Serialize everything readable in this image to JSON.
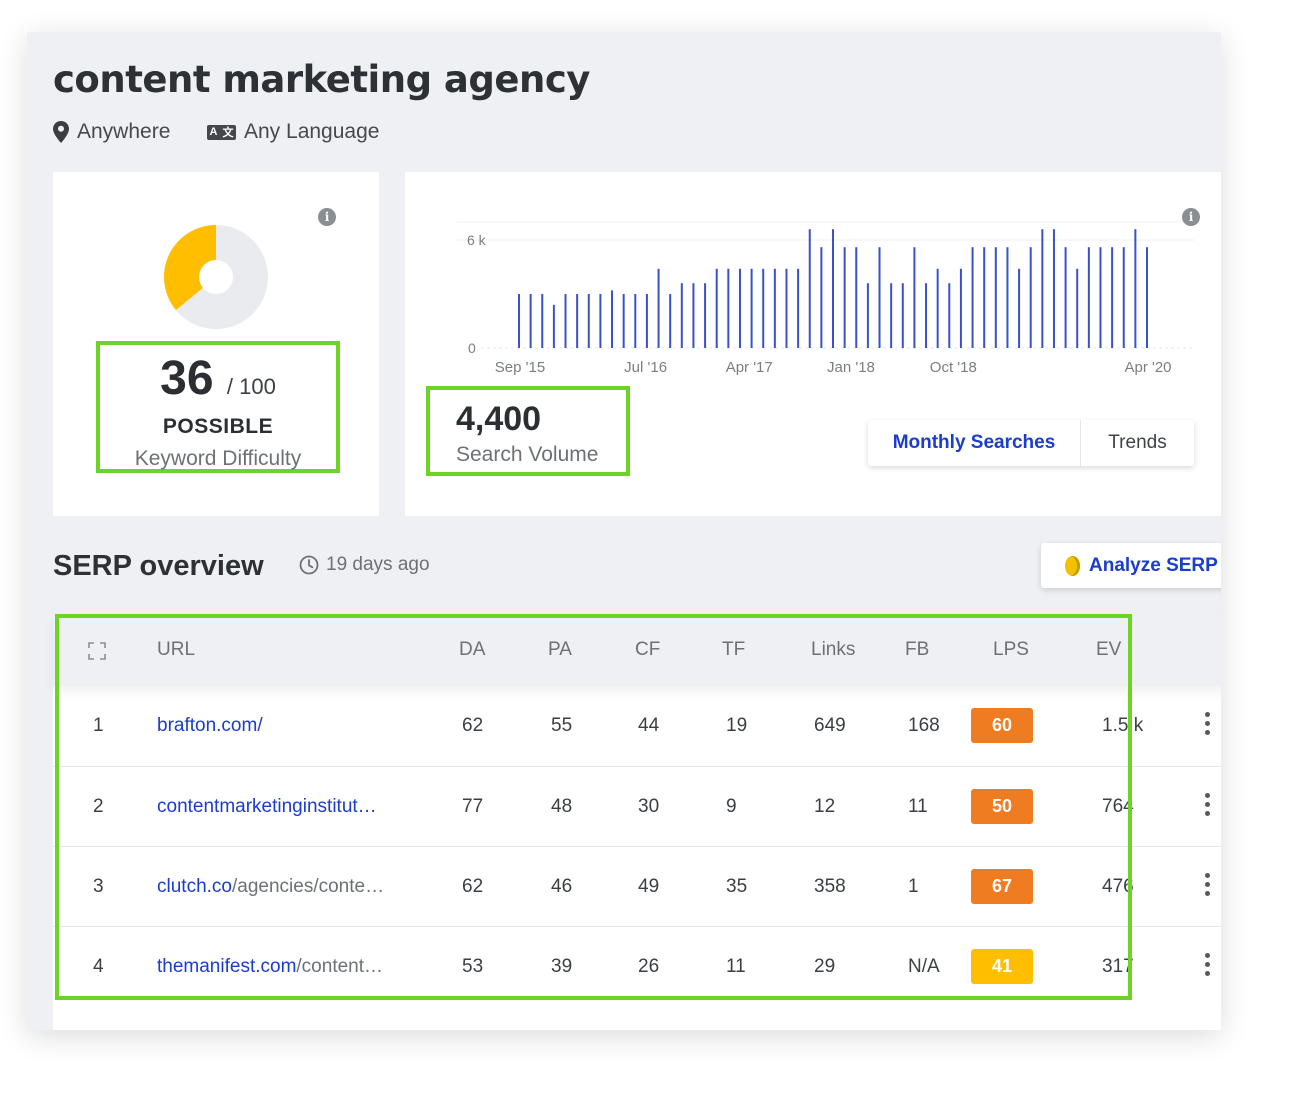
{
  "keyword": {
    "title": "content marketing agency",
    "location": "Anywhere",
    "language": "Any Language"
  },
  "difficulty": {
    "score": "36",
    "max": "/ 100",
    "level": "POSSIBLE",
    "label": "Keyword Difficulty",
    "gauge_fraction": 0.36,
    "gauge_color": "#ffbe00"
  },
  "volume": {
    "value": "4,400",
    "label": "Search Volume",
    "tabs": [
      "Monthly Searches",
      "Trends"
    ],
    "active_tab": "Monthly Searches"
  },
  "chart_data": {
    "type": "bar",
    "ylabel_ticks": [
      "6 k",
      "0"
    ],
    "ylim": [
      0,
      7000
    ],
    "x_tick_labels": [
      "Sep '15",
      "Jul '16",
      "Apr '17",
      "Jan '18",
      "Oct '18",
      "Apr '20"
    ],
    "values": [
      3000,
      3000,
      3000,
      2400,
      3000,
      3000,
      3000,
      3000,
      3200,
      3000,
      3000,
      3000,
      4400,
      3000,
      3600,
      3600,
      3600,
      4400,
      4400,
      4400,
      4400,
      4400,
      4400,
      4400,
      4400,
      6600,
      5600,
      6600,
      5600,
      5600,
      3600,
      5600,
      3600,
      3600,
      5600,
      3600,
      4400,
      3600,
      4400,
      5600,
      5600,
      5600,
      5600,
      4400,
      5600,
      6600,
      6600,
      5600,
      4400,
      5600,
      5600,
      5600,
      5600,
      6600,
      5600
    ],
    "bar_color": "#3a52c9",
    "grid": true
  },
  "serp": {
    "title": "SERP overview",
    "updated": "19 days ago",
    "analyze_label": "Analyze SERP",
    "columns": [
      "URL",
      "DA",
      "PA",
      "CF",
      "TF",
      "Links",
      "FB",
      "LPS",
      "EV"
    ],
    "rows": [
      {
        "rank": "1",
        "domain": "brafton.com/",
        "path": "",
        "da": "62",
        "pa": "55",
        "cf": "44",
        "tf": "19",
        "links": "649",
        "fb": "168",
        "lps": "60",
        "lps_color": "#f07c22",
        "ev": "1.5 k"
      },
      {
        "rank": "2",
        "domain": "contentmarketinginstitut…",
        "path": "",
        "da": "77",
        "pa": "48",
        "cf": "30",
        "tf": "9",
        "links": "12",
        "fb": "11",
        "lps": "50",
        "lps_color": "#f07c22",
        "ev": "764"
      },
      {
        "rank": "3",
        "domain": "clutch.co",
        "path": "/agencies/conte…",
        "da": "62",
        "pa": "46",
        "cf": "49",
        "tf": "35",
        "links": "358",
        "fb": "1",
        "lps": "67",
        "lps_color": "#f07c22",
        "ev": "476"
      },
      {
        "rank": "4",
        "domain": "themanifest.com",
        "path": "/content…",
        "da": "53",
        "pa": "39",
        "cf": "26",
        "tf": "11",
        "links": "29",
        "fb": "N/A",
        "lps": "41",
        "lps_color": "#ffbe00",
        "ev": "317"
      }
    ]
  },
  "highlight_color": "#6bd425"
}
